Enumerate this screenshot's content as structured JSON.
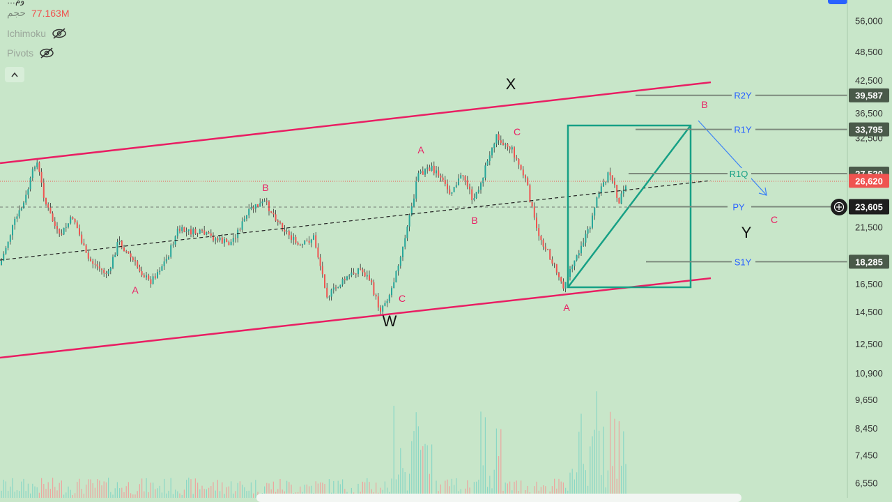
{
  "legend": {
    "top_line": "…وم",
    "volume_label": "حجم",
    "volume_value": "77.163M",
    "indicator_1": "Ichimoku",
    "indicator_2": "Pivots",
    "eye_off_icon": "eye-off-icon",
    "collapse_icon": "chevron-up-icon"
  },
  "colors": {
    "background": "#c8e6c9",
    "channel": "#e91e63",
    "wave_label": "#e91e63",
    "box": "#16a085",
    "pivot_line": "#7d8a7d",
    "pivot_label": "#2962ff",
    "projection_arrow": "#3b82f6",
    "up_candle": "#26a69a",
    "down_candle": "#ef5350",
    "price_tag_dark": "#4a5a4a",
    "price_tag_current": "#ef5350"
  },
  "chart_data": {
    "type": "candlestick",
    "y_axis": {
      "scale": "log",
      "ticks": [
        "56,000",
        "48,500",
        "42,500",
        "36,500",
        "32,500",
        "21,500",
        "16,500",
        "14,500",
        "12,500",
        "10,900",
        "9,650",
        "8,450",
        "7,450",
        "6,550"
      ]
    },
    "current_price": "26,620",
    "crosshair_price": "23,605",
    "pivot_levels": [
      {
        "label": "R2Y",
        "value": "39,587"
      },
      {
        "label": "R1Y",
        "value": "33,795"
      },
      {
        "label": "R1Q",
        "value": "27,520"
      },
      {
        "label": "PY",
        "value": "23,605"
      },
      {
        "label": "S1Y",
        "value": "18,285"
      }
    ],
    "wave_labels": {
      "major": [
        "X",
        "W",
        "Y"
      ],
      "minor": [
        "A",
        "B",
        "C",
        "A",
        "B",
        "C",
        "A",
        "B",
        "C"
      ]
    },
    "channel": {
      "upper_line": true,
      "lower_line": true,
      "mid_line": "dashed"
    },
    "annotations": [
      "rectangle",
      "diagonal-line",
      "projection-arrow"
    ]
  }
}
